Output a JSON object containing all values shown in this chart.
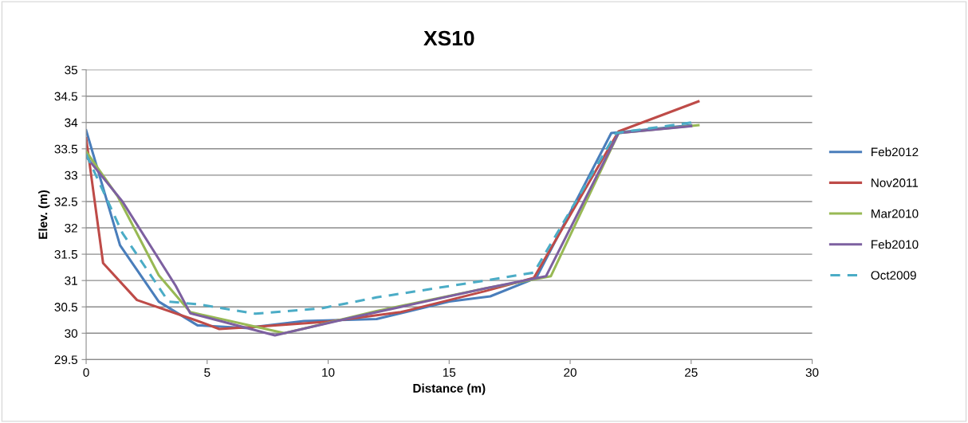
{
  "chart_data": {
    "type": "line",
    "title": "XS10",
    "xlabel": "Distance (m)",
    "ylabel": "Elev. (m)",
    "xlim": [
      0,
      30
    ],
    "xticks": [
      0,
      5,
      10,
      15,
      20,
      25,
      30
    ],
    "ylim": [
      29.5,
      35
    ],
    "yticks": [
      29.5,
      30,
      30.5,
      31,
      31.5,
      32,
      32.5,
      33,
      33.5,
      34,
      34.5,
      35
    ],
    "grid": "y",
    "legend": "right",
    "marker": "none",
    "series": [
      {
        "name": "Feb2012",
        "color": "#4a7ebb",
        "line_style": "solid",
        "x": [
          0,
          1.4,
          3,
          4.6,
          6.6,
          9,
          12,
          15,
          16.7,
          18.6,
          21.7,
          25
        ],
        "values": [
          33.85,
          31.67,
          30.6,
          30.15,
          30.1,
          30.23,
          30.27,
          30.6,
          30.7,
          31.05,
          33.8,
          33.95
        ]
      },
      {
        "name": "Nov2011",
        "color": "#be4b48",
        "line_style": "solid",
        "x": [
          0,
          0.7,
          2.1,
          4.5,
          5.5,
          7,
          10,
          13,
          16.5,
          18.5,
          22,
          25.3
        ],
        "values": [
          33.7,
          31.33,
          30.63,
          30.25,
          30.08,
          30.12,
          30.22,
          30.4,
          30.8,
          31.05,
          33.83,
          34.4
        ]
      },
      {
        "name": "Mar2010",
        "color": "#98b954",
        "line_style": "solid",
        "x": [
          0,
          1.3,
          3,
          4.3,
          8.2,
          12,
          16.5,
          19.2,
          22,
          25.3
        ],
        "values": [
          33.45,
          32.6,
          31.1,
          30.4,
          30.0,
          30.42,
          30.85,
          31.08,
          33.8,
          33.95
        ]
      },
      {
        "name": "Feb2010",
        "color": "#7d60a0",
        "line_style": "solid",
        "x": [
          0,
          1.5,
          3.7,
          4.3,
          7.8,
          11,
          16.5,
          19,
          22,
          25
        ],
        "values": [
          33.35,
          32.5,
          30.9,
          30.38,
          29.96,
          30.3,
          30.85,
          31.08,
          33.8,
          33.93
        ]
      },
      {
        "name": "Oct2009",
        "color": "#4bacc6",
        "line_style": "dashed",
        "x": [
          0,
          1.5,
          3.4,
          4.6,
          7,
          9.7,
          12,
          16.5,
          18.5,
          21.9,
          25
        ],
        "values": [
          33.4,
          31.9,
          30.6,
          30.55,
          30.37,
          30.47,
          30.68,
          31.0,
          31.15,
          33.8,
          34.0
        ]
      }
    ]
  }
}
